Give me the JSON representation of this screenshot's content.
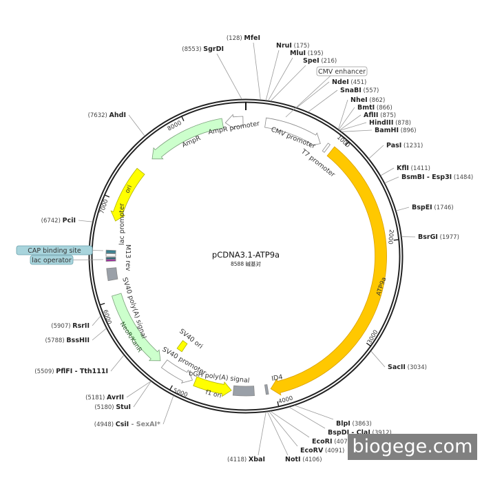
{
  "plasmid": {
    "name": "pCDNA3.1-ATP9a",
    "size_text": "8588 碱基对",
    "length_bp": 8588
  },
  "enzymes": [
    {
      "name": "MfeI",
      "pos": 128
    },
    {
      "name": "SgrDI",
      "pos": 8553
    },
    {
      "name": "NruI",
      "pos": 175
    },
    {
      "name": "MluI",
      "pos": 195
    },
    {
      "name": "SpeI",
      "pos": 216
    },
    {
      "name": "NdeI",
      "pos": 451
    },
    {
      "name": "SnaBI",
      "pos": 557
    },
    {
      "name": "NheI",
      "pos": 862
    },
    {
      "name": "BmtI",
      "pos": 866
    },
    {
      "name": "AflII",
      "pos": 875
    },
    {
      "name": "HindIII",
      "pos": 878
    },
    {
      "name": "BamHI",
      "pos": 896
    },
    {
      "name": "PasI",
      "pos": 1231
    },
    {
      "name": "KflI",
      "pos": 1411
    },
    {
      "name": "BsmBI - Esp3I",
      "pos": 1484
    },
    {
      "name": "BspEI",
      "pos": 1746
    },
    {
      "name": "BsrGI",
      "pos": 1977
    },
    {
      "name": "SacII",
      "pos": 3034
    },
    {
      "name": "BlpI",
      "pos": 3863
    },
    {
      "name": "BspDI - ClaI",
      "pos": 3912
    },
    {
      "name": "EcoRI",
      "pos": 4079
    },
    {
      "name": "EcoRV",
      "pos": 4091
    },
    {
      "name": "NotI",
      "pos": 4106
    },
    {
      "name": "XbaI",
      "pos": 4118
    },
    {
      "name": "CsiI",
      "suffix": " - SexAI*",
      "pos": 4948
    },
    {
      "name": "StuI",
      "pos": 5180
    },
    {
      "name": "AvrII",
      "pos": 5181
    },
    {
      "name": "PflFI - Tth111I",
      "pos": 5509
    },
    {
      "name": "BssHII",
      "pos": 5788
    },
    {
      "name": "RsrII",
      "pos": 5907
    },
    {
      "name": "PciI",
      "pos": 6742
    },
    {
      "name": "AhdI",
      "pos": 7632
    }
  ],
  "features": [
    {
      "label": "CMV promoter",
      "start": 200,
      "end": 800,
      "direction": 1,
      "color": "#ffffff"
    },
    {
      "label": "T7 promoter",
      "start": 860,
      "end": 885,
      "direction": 1,
      "color": "#ffffff"
    },
    {
      "label": "ATP9a",
      "start": 931,
      "end": 4040,
      "direction": 1,
      "color": "#ffc800"
    },
    {
      "label": "ID4",
      "start": 4070,
      "end": 4095,
      "direction": 0,
      "color": "#9aa0a8"
    },
    {
      "label": "bGH poly(A) signal",
      "start": 4210,
      "end": 4420,
      "direction": 0,
      "color": "#9aa0a8"
    },
    {
      "label": "f1 ori",
      "start": 4440,
      "end": 4820,
      "direction": -1,
      "color": "#ffff00"
    },
    {
      "label": "SV40 promoter",
      "start": 4850,
      "end": 5180,
      "direction": -1,
      "color": "#ffffff"
    },
    {
      "label": "SV40 ori",
      "start": 5100,
      "end": 5170,
      "direction": 0,
      "color": "#ffff00"
    },
    {
      "label": "NeoR/KanR",
      "start": 5230,
      "end": 6045,
      "direction": -1,
      "color": "#ccffcc"
    },
    {
      "label": "SV40 poly(A) signal",
      "start": 6200,
      "end": 6320,
      "direction": 0,
      "color": "#9aa0a8"
    },
    {
      "label": "lac operator",
      "start": 6390,
      "end": 6410,
      "direction": 0,
      "color": "#993399"
    },
    {
      "label": "M13 rev",
      "start": 6410,
      "end": 6430,
      "direction": 0,
      "color": "#336677"
    },
    {
      "label": "lac promoter",
      "start": 6440,
      "end": 6465,
      "direction": 0,
      "color": "#ffffff"
    },
    {
      "label": "CAP binding site",
      "start": 6470,
      "end": 6500,
      "direction": 0,
      "color": "#3a8090"
    },
    {
      "label": "ori",
      "start": 6800,
      "end": 7370,
      "direction": -1,
      "color": "#ffff00"
    },
    {
      "label": "AmpR",
      "start": 7540,
      "end": 8352,
      "direction": -1,
      "color": "#ccffcc"
    },
    {
      "label": "AmpR promoter",
      "start": 8380,
      "end": 8560,
      "direction": -1,
      "color": "#ffffff"
    }
  ],
  "boxed_labels": [
    {
      "label": "CMV enhancer",
      "pos": 382
    },
    {
      "label": "CAP binding site",
      "pos": 6485
    },
    {
      "label": "lac operator",
      "pos": 6400
    }
  ],
  "ticks": [
    "1000",
    "2000",
    "3000",
    "4000",
    "5000",
    "6000",
    "7000",
    "8000"
  ],
  "watermark": "biogege.com"
}
